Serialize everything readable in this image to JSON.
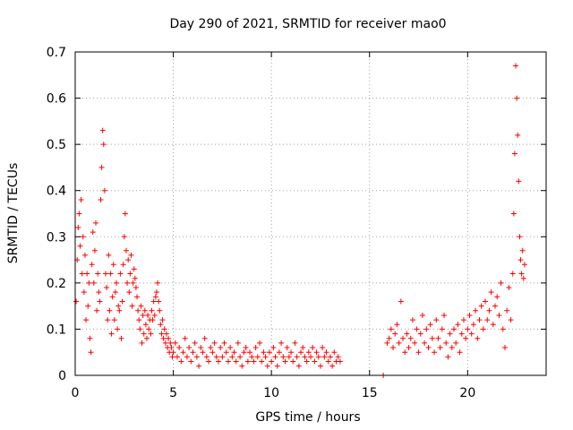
{
  "chart_data": {
    "type": "scatter",
    "title": "Day 290 of 2021, SRMTID for receiver mao0",
    "xlabel": "GPS time / hours",
    "ylabel": "SRMTID / TECUs",
    "xlim": [
      0,
      24
    ],
    "ylim": [
      0,
      0.7
    ],
    "xticks": [
      0,
      5,
      10,
      15,
      20
    ],
    "xtick_labels": [
      "0",
      "5",
      "10",
      "15",
      "20"
    ],
    "yticks": [
      0,
      0.1,
      0.2,
      0.3,
      0.4,
      0.5,
      0.6,
      0.7
    ],
    "ytick_labels": [
      "0",
      "0.1",
      "0.2",
      "0.3",
      "0.4",
      "0.5",
      "0.6",
      "0.7"
    ],
    "grid": true,
    "marker": "+",
    "color": "#ff0000",
    "series": [
      {
        "name": "SRMTID",
        "points": [
          [
            0.05,
            0.16
          ],
          [
            0.1,
            0.25
          ],
          [
            0.15,
            0.32
          ],
          [
            0.2,
            0.35
          ],
          [
            0.25,
            0.28
          ],
          [
            0.3,
            0.38
          ],
          [
            0.35,
            0.22
          ],
          [
            0.4,
            0.3
          ],
          [
            0.45,
            0.18
          ],
          [
            0.5,
            0.26
          ],
          [
            0.55,
            0.12
          ],
          [
            0.6,
            0.22
          ],
          [
            0.65,
            0.15
          ],
          [
            0.7,
            0.2
          ],
          [
            0.75,
            0.08
          ],
          [
            0.8,
            0.05
          ],
          [
            0.85,
            0.24
          ],
          [
            0.9,
            0.31
          ],
          [
            0.95,
            0.2
          ],
          [
            1.0,
            0.27
          ],
          [
            1.05,
            0.33
          ],
          [
            1.1,
            0.14
          ],
          [
            1.15,
            0.22
          ],
          [
            1.2,
            0.18
          ],
          [
            1.25,
            0.16
          ],
          [
            1.3,
            0.38
          ],
          [
            1.35,
            0.45
          ],
          [
            1.4,
            0.53
          ],
          [
            1.45,
            0.5
          ],
          [
            1.5,
            0.4
          ],
          [
            1.55,
            0.22
          ],
          [
            1.6,
            0.19
          ],
          [
            1.65,
            0.12
          ],
          [
            1.7,
            0.26
          ],
          [
            1.75,
            0.14
          ],
          [
            1.8,
            0.22
          ],
          [
            1.85,
            0.09
          ],
          [
            1.9,
            0.17
          ],
          [
            1.95,
            0.24
          ],
          [
            2.0,
            0.12
          ],
          [
            2.05,
            0.18
          ],
          [
            2.1,
            0.2
          ],
          [
            2.15,
            0.1
          ],
          [
            2.2,
            0.15
          ],
          [
            2.25,
            0.14
          ],
          [
            2.3,
            0.22
          ],
          [
            2.35,
            0.08
          ],
          [
            2.4,
            0.16
          ],
          [
            2.45,
            0.24
          ],
          [
            2.5,
            0.3
          ],
          [
            2.55,
            0.35
          ],
          [
            2.6,
            0.27
          ],
          [
            2.65,
            0.2
          ],
          [
            2.7,
            0.25
          ],
          [
            2.75,
            0.18
          ],
          [
            2.8,
            0.22
          ],
          [
            2.85,
            0.26
          ],
          [
            2.9,
            0.15
          ],
          [
            2.95,
            0.2
          ],
          [
            3.0,
            0.23
          ],
          [
            3.05,
            0.21
          ],
          [
            3.1,
            0.19
          ],
          [
            3.15,
            0.17
          ],
          [
            3.2,
            0.14
          ],
          [
            3.25,
            0.12
          ],
          [
            3.3,
            0.1
          ],
          [
            3.35,
            0.15
          ],
          [
            3.4,
            0.07
          ],
          [
            3.45,
            0.13
          ],
          [
            3.5,
            0.09
          ],
          [
            3.55,
            0.14
          ],
          [
            3.6,
            0.11
          ],
          [
            3.65,
            0.08
          ],
          [
            3.7,
            0.13
          ],
          [
            3.75,
            0.1
          ],
          [
            3.8,
            0.12
          ],
          [
            3.85,
            0.09
          ],
          [
            3.9,
            0.14
          ],
          [
            3.95,
            0.12
          ],
          [
            4.0,
            0.16
          ],
          [
            4.05,
            0.13
          ],
          [
            4.1,
            0.17
          ],
          [
            4.15,
            0.18
          ],
          [
            4.2,
            0.2
          ],
          [
            4.25,
            0.16
          ],
          [
            4.3,
            0.14
          ],
          [
            4.35,
            0.11
          ],
          [
            4.4,
            0.09
          ],
          [
            4.45,
            0.12
          ],
          [
            4.5,
            0.08
          ],
          [
            4.55,
            0.1
          ],
          [
            4.6,
            0.07
          ],
          [
            4.65,
            0.09
          ],
          [
            4.7,
            0.06
          ],
          [
            4.75,
            0.08
          ],
          [
            4.8,
            0.05
          ],
          [
            4.85,
            0.07
          ],
          [
            4.9,
            0.06
          ],
          [
            4.95,
            0.04
          ],
          [
            5.0,
            0.05
          ],
          [
            5.1,
            0.07
          ],
          [
            5.2,
            0.04
          ],
          [
            5.3,
            0.06
          ],
          [
            5.4,
            0.03
          ],
          [
            5.5,
            0.05
          ],
          [
            5.6,
            0.08
          ],
          [
            5.7,
            0.04
          ],
          [
            5.8,
            0.06
          ],
          [
            5.9,
            0.03
          ],
          [
            6.0,
            0.05
          ],
          [
            6.1,
            0.07
          ],
          [
            6.2,
            0.04
          ],
          [
            6.3,
            0.02
          ],
          [
            6.4,
            0.06
          ],
          [
            6.5,
            0.05
          ],
          [
            6.6,
            0.08
          ],
          [
            6.7,
            0.04
          ],
          [
            6.8,
            0.03
          ],
          [
            6.9,
            0.06
          ],
          [
            7.0,
            0.05
          ],
          [
            7.1,
            0.07
          ],
          [
            7.2,
            0.04
          ],
          [
            7.3,
            0.03
          ],
          [
            7.4,
            0.06
          ],
          [
            7.5,
            0.04
          ],
          [
            7.6,
            0.07
          ],
          [
            7.7,
            0.05
          ],
          [
            7.8,
            0.03
          ],
          [
            7.9,
            0.06
          ],
          [
            8.0,
            0.04
          ],
          [
            8.1,
            0.05
          ],
          [
            8.2,
            0.03
          ],
          [
            8.3,
            0.07
          ],
          [
            8.4,
            0.04
          ],
          [
            8.5,
            0.02
          ],
          [
            8.6,
            0.05
          ],
          [
            8.7,
            0.06
          ],
          [
            8.8,
            0.03
          ],
          [
            8.9,
            0.05
          ],
          [
            9.0,
            0.04
          ],
          [
            9.1,
            0.03
          ],
          [
            9.2,
            0.06
          ],
          [
            9.3,
            0.04
          ],
          [
            9.4,
            0.07
          ],
          [
            9.5,
            0.03
          ],
          [
            9.6,
            0.05
          ],
          [
            9.7,
            0.04
          ],
          [
            9.8,
            0.02
          ],
          [
            9.9,
            0.05
          ],
          [
            10.0,
            0.03
          ],
          [
            10.1,
            0.06
          ],
          [
            10.2,
            0.04
          ],
          [
            10.3,
            0.02
          ],
          [
            10.4,
            0.05
          ],
          [
            10.5,
            0.07
          ],
          [
            10.6,
            0.04
          ],
          [
            10.7,
            0.03
          ],
          [
            10.8,
            0.06
          ],
          [
            10.9,
            0.04
          ],
          [
            11.0,
            0.05
          ],
          [
            11.1,
            0.03
          ],
          [
            11.2,
            0.07
          ],
          [
            11.3,
            0.04
          ],
          [
            11.4,
            0.02
          ],
          [
            11.5,
            0.05
          ],
          [
            11.6,
            0.06
          ],
          [
            11.7,
            0.04
          ],
          [
            11.8,
            0.03
          ],
          [
            11.9,
            0.05
          ],
          [
            12.0,
            0.04
          ],
          [
            12.1,
            0.06
          ],
          [
            12.2,
            0.03
          ],
          [
            12.3,
            0.05
          ],
          [
            12.4,
            0.04
          ],
          [
            12.5,
            0.02
          ],
          [
            12.6,
            0.06
          ],
          [
            12.7,
            0.04
          ],
          [
            12.8,
            0.05
          ],
          [
            12.9,
            0.03
          ],
          [
            13.0,
            0.04
          ],
          [
            13.1,
            0.02
          ],
          [
            13.2,
            0.05
          ],
          [
            13.3,
            0.03
          ],
          [
            13.4,
            0.04
          ],
          [
            13.5,
            0.03
          ],
          [
            15.7,
            0.0
          ],
          [
            15.9,
            0.07
          ],
          [
            16.0,
            0.08
          ],
          [
            16.1,
            0.1
          ],
          [
            16.2,
            0.06
          ],
          [
            16.3,
            0.09
          ],
          [
            16.4,
            0.11
          ],
          [
            16.5,
            0.07
          ],
          [
            16.6,
            0.16
          ],
          [
            16.7,
            0.08
          ],
          [
            16.8,
            0.05
          ],
          [
            16.9,
            0.09
          ],
          [
            17.0,
            0.06
          ],
          [
            17.1,
            0.08
          ],
          [
            17.2,
            0.12
          ],
          [
            17.3,
            0.07
          ],
          [
            17.4,
            0.1
          ],
          [
            17.5,
            0.05
          ],
          [
            17.6,
            0.09
          ],
          [
            17.7,
            0.13
          ],
          [
            17.8,
            0.07
          ],
          [
            17.9,
            0.1
          ],
          [
            18.0,
            0.06
          ],
          [
            18.1,
            0.11
          ],
          [
            18.2,
            0.08
          ],
          [
            18.3,
            0.05
          ],
          [
            18.4,
            0.12
          ],
          [
            18.5,
            0.08
          ],
          [
            18.6,
            0.06
          ],
          [
            18.7,
            0.1
          ],
          [
            18.8,
            0.13
          ],
          [
            18.9,
            0.07
          ],
          [
            19.0,
            0.04
          ],
          [
            19.1,
            0.09
          ],
          [
            19.2,
            0.06
          ],
          [
            19.3,
            0.1
          ],
          [
            19.4,
            0.07
          ],
          [
            19.5,
            0.11
          ],
          [
            19.6,
            0.05
          ],
          [
            19.7,
            0.09
          ],
          [
            19.8,
            0.12
          ],
          [
            19.9,
            0.08
          ],
          [
            20.0,
            0.1
          ],
          [
            20.1,
            0.13
          ],
          [
            20.2,
            0.09
          ],
          [
            20.3,
            0.11
          ],
          [
            20.4,
            0.14
          ],
          [
            20.5,
            0.08
          ],
          [
            20.6,
            0.12
          ],
          [
            20.7,
            0.15
          ],
          [
            20.8,
            0.1
          ],
          [
            20.9,
            0.16
          ],
          [
            21.0,
            0.12
          ],
          [
            21.1,
            0.14
          ],
          [
            21.2,
            0.18
          ],
          [
            21.3,
            0.11
          ],
          [
            21.4,
            0.15
          ],
          [
            21.5,
            0.17
          ],
          [
            21.6,
            0.13
          ],
          [
            21.7,
            0.2
          ],
          [
            21.8,
            0.1
          ],
          [
            21.9,
            0.06
          ],
          [
            22.0,
            0.14
          ],
          [
            22.1,
            0.19
          ],
          [
            22.2,
            0.12
          ],
          [
            22.3,
            0.22
          ],
          [
            22.35,
            0.35
          ],
          [
            22.4,
            0.48
          ],
          [
            22.45,
            0.67
          ],
          [
            22.5,
            0.6
          ],
          [
            22.55,
            0.52
          ],
          [
            22.6,
            0.42
          ],
          [
            22.65,
            0.3
          ],
          [
            22.7,
            0.25
          ],
          [
            22.75,
            0.22
          ],
          [
            22.8,
            0.27
          ],
          [
            22.85,
            0.21
          ],
          [
            22.9,
            0.24
          ]
        ]
      }
    ]
  }
}
